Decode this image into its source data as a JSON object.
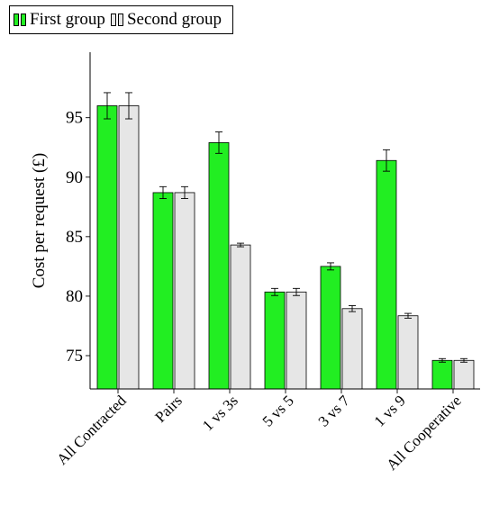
{
  "chart_data": {
    "type": "bar",
    "categories": [
      "All Contracted",
      "Pairs",
      "1 vs 3s",
      "5 vs 5",
      "3 vs 7",
      "1 vs 9",
      "All Cooperative"
    ],
    "series": [
      {
        "name": "First group",
        "color": "#22ee22",
        "values": [
          96.0,
          88.7,
          92.9,
          80.35,
          82.5,
          91.4,
          74.6
        ],
        "errors": [
          1.1,
          0.5,
          0.9,
          0.3,
          0.3,
          0.9,
          0.15
        ]
      },
      {
        "name": "Second group",
        "color": "#e6e6e6",
        "values": [
          96.0,
          88.7,
          84.3,
          80.35,
          78.95,
          78.35,
          74.6
        ],
        "errors": [
          1.1,
          0.5,
          0.15,
          0.3,
          0.25,
          0.2,
          0.15
        ]
      }
    ],
    "xlabel": "",
    "ylabel": "Cost per request (£)",
    "ylim": [
      72.2,
      100.5
    ],
    "yticks": [
      75,
      80,
      85,
      90,
      95
    ],
    "grid": false,
    "legend_position": "top-left"
  }
}
